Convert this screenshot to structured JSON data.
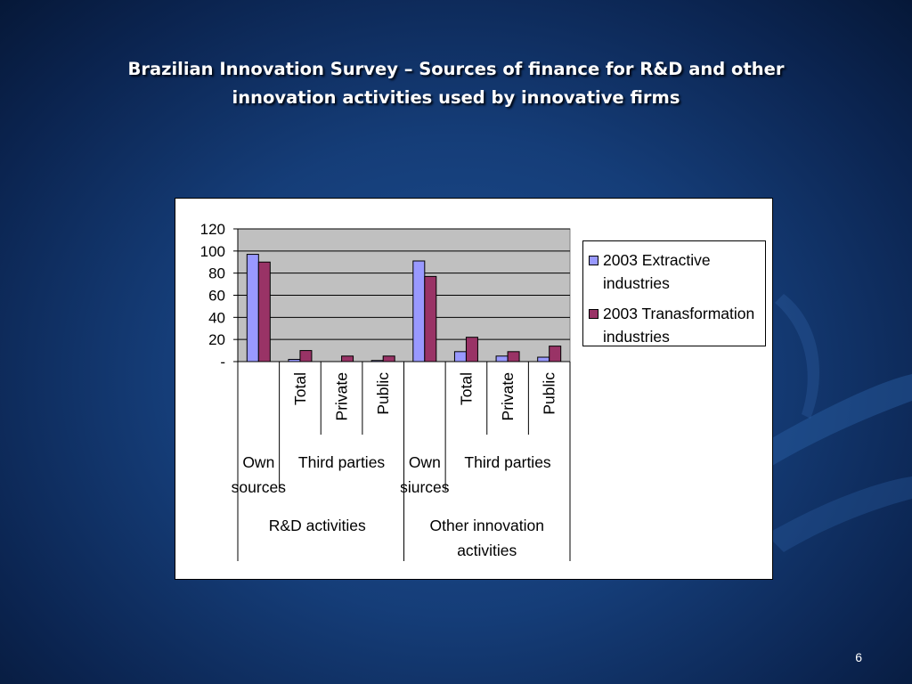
{
  "slide": {
    "title_line1": "Brazilian Innovation Survey – Sources of finance for R&D and other",
    "title_line2": "innovation activities used by innovative firms",
    "page_number": "6"
  },
  "colors": {
    "series1": "#9999ff",
    "series2": "#993366",
    "plot_bg": "#c0c0c0"
  },
  "chart_data": {
    "type": "bar",
    "title": "",
    "ylim": [
      0,
      120
    ],
    "y_ticks": [
      "-",
      "20",
      "40",
      "60",
      "80",
      "100",
      "120"
    ],
    "grid": true,
    "legend_position": "right",
    "categories": [
      "",
      "Total",
      "Private",
      "Public",
      "",
      "Total",
      "Private",
      "Public"
    ],
    "category_groups_level2": [
      {
        "label_lines": [
          "Own",
          "sources"
        ],
        "span": 1
      },
      {
        "label_lines": [
          "Third parties"
        ],
        "span": 3
      },
      {
        "label_lines": [
          "Own",
          "siurces"
        ],
        "span": 1
      },
      {
        "label_lines": [
          "Third parties"
        ],
        "span": 3
      }
    ],
    "category_groups_level1": [
      {
        "label_lines": [
          "R&D activities"
        ],
        "span": 4
      },
      {
        "label_lines": [
          "Other innovation",
          "activities"
        ],
        "span": 4
      }
    ],
    "series": [
      {
        "name_lines": [
          "2003 Extractive",
          "industries"
        ],
        "values": [
          97,
          2,
          0,
          1,
          91,
          9,
          5,
          4
        ]
      },
      {
        "name_lines": [
          "2003 Tranasformation",
          "industries"
        ],
        "values": [
          90,
          10,
          5,
          5,
          77,
          22,
          9,
          14
        ]
      }
    ]
  }
}
